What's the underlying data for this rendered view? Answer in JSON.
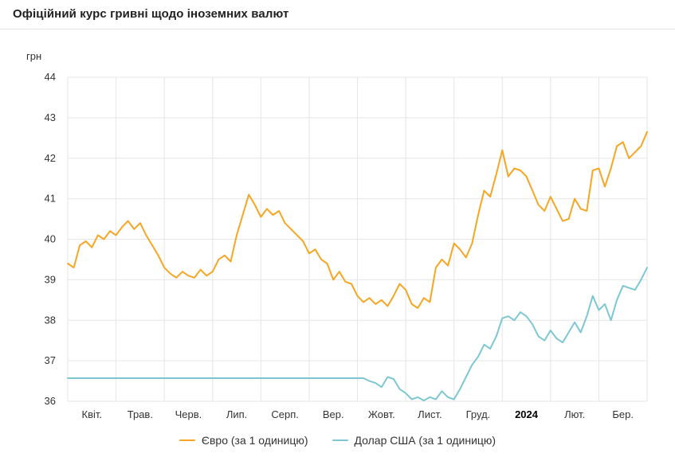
{
  "page": {
    "title": "Офіційний курс гривні щодо іноземних валют"
  },
  "chart_data": {
    "type": "line",
    "title": "Офіційний курс гривні щодо іноземних валют",
    "xlabel": "",
    "ylabel": "грн",
    "ylim": [
      36,
      44
    ],
    "y_ticks": [
      36,
      37,
      38,
      39,
      40,
      41,
      42,
      43,
      44
    ],
    "x_tick_labels": [
      "Квіт.",
      "Трав.",
      "Черв.",
      "Лип.",
      "Серп.",
      "Вер.",
      "Жовт.",
      "Лист.",
      "Груд.",
      "2024",
      "Лют.",
      "Бер."
    ],
    "bold_tick": "2024",
    "grid": true,
    "grid_color": "#e6e6e6",
    "axis_label_color": "#333333",
    "legend_position": "bottom",
    "series": [
      {
        "name": "Євро (за 1 одиницю)",
        "color": "#F6A623",
        "values": [
          39.4,
          39.3,
          39.85,
          39.95,
          39.8,
          40.1,
          40.0,
          40.2,
          40.1,
          40.3,
          40.45,
          40.25,
          40.4,
          40.1,
          39.85,
          39.6,
          39.3,
          39.15,
          39.05,
          39.2,
          39.1,
          39.05,
          39.25,
          39.1,
          39.2,
          39.5,
          39.6,
          39.45,
          40.1,
          40.6,
          41.1,
          40.85,
          40.55,
          40.75,
          40.6,
          40.7,
          40.4,
          40.25,
          40.1,
          39.95,
          39.65,
          39.75,
          39.5,
          39.4,
          39.0,
          39.2,
          38.95,
          38.9,
          38.6,
          38.45,
          38.55,
          38.4,
          38.5,
          38.35,
          38.6,
          38.9,
          38.75,
          38.4,
          38.3,
          38.55,
          38.45,
          39.3,
          39.5,
          39.35,
          39.9,
          39.75,
          39.55,
          39.9,
          40.6,
          41.2,
          41.05,
          41.6,
          42.2,
          41.55,
          41.75,
          41.7,
          41.55,
          41.2,
          40.85,
          40.7,
          41.05,
          40.75,
          40.45,
          40.5,
          41.0,
          40.75,
          40.7,
          41.7,
          41.75,
          41.3,
          41.75,
          42.3,
          42.4,
          42.0,
          42.15,
          42.3,
          42.65
        ]
      },
      {
        "name": "Долар США (за 1 одиницю)",
        "color": "#7EC7D2",
        "values": [
          36.57,
          36.57,
          36.57,
          36.57,
          36.57,
          36.57,
          36.57,
          36.57,
          36.57,
          36.57,
          36.57,
          36.57,
          36.57,
          36.57,
          36.57,
          36.57,
          36.57,
          36.57,
          36.57,
          36.57,
          36.57,
          36.57,
          36.57,
          36.57,
          36.57,
          36.57,
          36.57,
          36.57,
          36.57,
          36.57,
          36.57,
          36.57,
          36.57,
          36.57,
          36.57,
          36.57,
          36.57,
          36.57,
          36.57,
          36.57,
          36.57,
          36.57,
          36.57,
          36.57,
          36.57,
          36.57,
          36.57,
          36.57,
          36.57,
          36.57,
          36.5,
          36.45,
          36.35,
          36.6,
          36.55,
          36.3,
          36.2,
          36.05,
          36.1,
          36.02,
          36.1,
          36.05,
          36.25,
          36.1,
          36.05,
          36.3,
          36.6,
          36.9,
          37.1,
          37.4,
          37.3,
          37.6,
          38.05,
          38.1,
          38.0,
          38.2,
          38.1,
          37.9,
          37.6,
          37.5,
          37.75,
          37.55,
          37.45,
          37.7,
          37.95,
          37.7,
          38.1,
          38.6,
          38.25,
          38.4,
          38.0,
          38.5,
          38.85,
          38.8,
          38.75,
          39.0,
          39.3
        ]
      }
    ]
  }
}
